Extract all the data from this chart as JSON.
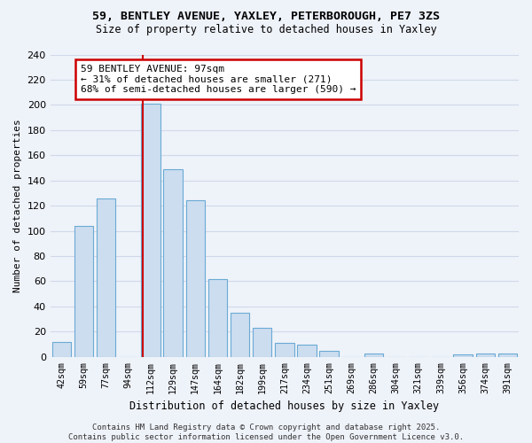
{
  "title1": "59, BENTLEY AVENUE, YAXLEY, PETERBOROUGH, PE7 3ZS",
  "title2": "Size of property relative to detached houses in Yaxley",
  "xlabel": "Distribution of detached houses by size in Yaxley",
  "ylabel": "Number of detached properties",
  "bar_labels": [
    "42sqm",
    "59sqm",
    "77sqm",
    "94sqm",
    "112sqm",
    "129sqm",
    "147sqm",
    "164sqm",
    "182sqm",
    "199sqm",
    "217sqm",
    "234sqm",
    "251sqm",
    "269sqm",
    "286sqm",
    "304sqm",
    "321sqm",
    "339sqm",
    "356sqm",
    "374sqm",
    "391sqm"
  ],
  "bar_values": [
    12,
    104,
    126,
    0,
    201,
    149,
    124,
    62,
    35,
    23,
    11,
    10,
    5,
    0,
    3,
    0,
    0,
    0,
    2,
    3,
    3
  ],
  "bar_color": "#ccddf0",
  "bar_edge_color": "#6aaad4",
  "annotation_line": "59 BENTLEY AVENUE: 97sqm",
  "annotation_line2": "← 31% of detached houses are smaller (271)",
  "annotation_line3": "68% of semi-detached houses are larger (590) →",
  "annotation_box_color": "#ffffff",
  "annotation_box_edge_color": "#cc0000",
  "vline_color": "#cc0000",
  "footer": "Contains HM Land Registry data © Crown copyright and database right 2025.\nContains public sector information licensed under the Open Government Licence v3.0.",
  "ylim": [
    0,
    240
  ],
  "yticks": [
    0,
    20,
    40,
    60,
    80,
    100,
    120,
    140,
    160,
    180,
    200,
    220,
    240
  ],
  "bg_color": "#eef2f9",
  "grid_color": "#d0d8e8"
}
